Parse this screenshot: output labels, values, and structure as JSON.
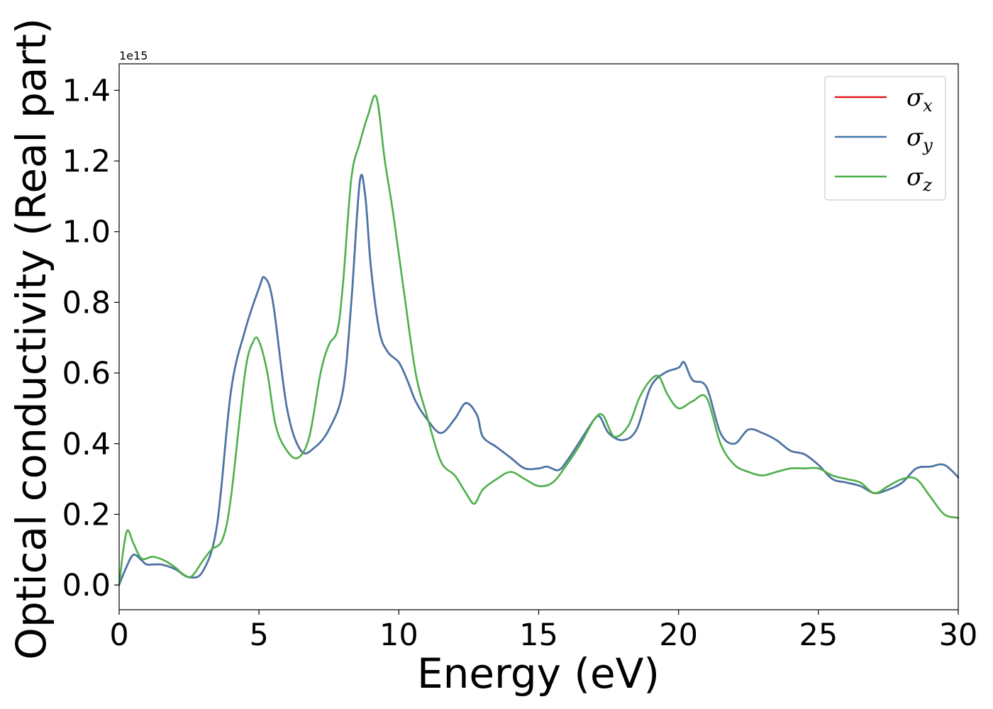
{
  "chart_data": {
    "type": "line",
    "xlabel": "Energy (eV)",
    "ylabel": "Optical conductivity (Real part)",
    "y_offset_label": "1e15",
    "xlim": [
      0,
      30
    ],
    "ylim": [
      -0.07,
      1.475
    ],
    "x_ticks": [
      0,
      5,
      10,
      15,
      20,
      25,
      30
    ],
    "x_tick_labels": [
      "0",
      "5",
      "10",
      "15",
      "20",
      "25",
      "30"
    ],
    "y_ticks": [
      0.0,
      0.2,
      0.4,
      0.6,
      0.8,
      1.0,
      1.2,
      1.4
    ],
    "y_tick_labels": [
      "0.0",
      "0.2",
      "0.4",
      "0.6",
      "0.8",
      "1.0",
      "1.2",
      "1.4"
    ],
    "grid": false,
    "legend_position": "top-right",
    "series": [
      {
        "name": "σ",
        "subscript": "x",
        "color": "#e41a1c",
        "x": [
          0,
          0.2,
          0.5,
          0.8,
          1.0,
          1.5,
          2.0,
          2.5,
          3.0,
          3.5,
          4.0,
          4.5,
          5.0,
          5.2,
          5.5,
          6.0,
          6.5,
          7.0,
          7.5,
          8.0,
          8.3,
          8.6,
          8.8,
          9.0,
          9.3,
          9.6,
          10.0,
          10.3,
          10.6,
          11.0,
          11.5,
          12.0,
          12.4,
          12.8,
          13.0,
          13.5,
          14.0,
          14.5,
          15.0,
          15.3,
          15.7,
          16.0,
          16.5,
          17.0,
          17.2,
          17.5,
          18.0,
          18.5,
          19.0,
          19.5,
          20.0,
          20.2,
          20.5,
          21.0,
          21.5,
          22.0,
          22.5,
          23.0,
          23.5,
          24.0,
          24.5,
          25.0,
          25.5,
          26.0,
          26.5,
          27.0,
          27.5,
          28.0,
          28.5,
          29.0,
          29.5,
          30.0
        ],
        "values": [
          0.0,
          0.04,
          0.085,
          0.07,
          0.058,
          0.058,
          0.045,
          0.022,
          0.04,
          0.17,
          0.55,
          0.72,
          0.84,
          0.87,
          0.8,
          0.5,
          0.38,
          0.39,
          0.44,
          0.55,
          0.8,
          1.14,
          1.1,
          0.9,
          0.72,
          0.66,
          0.63,
          0.58,
          0.52,
          0.47,
          0.43,
          0.47,
          0.515,
          0.48,
          0.42,
          0.39,
          0.36,
          0.33,
          0.33,
          0.335,
          0.325,
          0.35,
          0.41,
          0.47,
          0.475,
          0.43,
          0.41,
          0.44,
          0.56,
          0.6,
          0.615,
          0.63,
          0.58,
          0.56,
          0.43,
          0.4,
          0.44,
          0.43,
          0.41,
          0.38,
          0.37,
          0.34,
          0.3,
          0.29,
          0.28,
          0.26,
          0.27,
          0.29,
          0.33,
          0.335,
          0.34,
          0.305
        ]
      },
      {
        "name": "σ",
        "subscript": "y",
        "color": "#4477aa",
        "x": [
          0,
          0.2,
          0.5,
          0.8,
          1.0,
          1.5,
          2.0,
          2.5,
          3.0,
          3.5,
          4.0,
          4.5,
          5.0,
          5.2,
          5.5,
          6.0,
          6.5,
          7.0,
          7.5,
          8.0,
          8.3,
          8.6,
          8.8,
          9.0,
          9.3,
          9.6,
          10.0,
          10.3,
          10.6,
          11.0,
          11.5,
          12.0,
          12.4,
          12.8,
          13.0,
          13.5,
          14.0,
          14.5,
          15.0,
          15.3,
          15.7,
          16.0,
          16.5,
          17.0,
          17.2,
          17.5,
          18.0,
          18.5,
          19.0,
          19.5,
          20.0,
          20.2,
          20.5,
          21.0,
          21.5,
          22.0,
          22.5,
          23.0,
          23.5,
          24.0,
          24.5,
          25.0,
          25.5,
          26.0,
          26.5,
          27.0,
          27.5,
          28.0,
          28.5,
          29.0,
          29.5,
          30.0
        ],
        "values": [
          0.0,
          0.04,
          0.085,
          0.07,
          0.058,
          0.058,
          0.045,
          0.022,
          0.04,
          0.17,
          0.55,
          0.72,
          0.84,
          0.87,
          0.8,
          0.5,
          0.38,
          0.39,
          0.44,
          0.55,
          0.8,
          1.14,
          1.1,
          0.9,
          0.72,
          0.66,
          0.63,
          0.58,
          0.52,
          0.47,
          0.43,
          0.47,
          0.515,
          0.48,
          0.42,
          0.39,
          0.36,
          0.33,
          0.33,
          0.335,
          0.325,
          0.35,
          0.41,
          0.47,
          0.475,
          0.43,
          0.41,
          0.44,
          0.56,
          0.6,
          0.615,
          0.63,
          0.58,
          0.56,
          0.43,
          0.4,
          0.44,
          0.43,
          0.41,
          0.38,
          0.37,
          0.34,
          0.3,
          0.29,
          0.28,
          0.26,
          0.27,
          0.29,
          0.33,
          0.335,
          0.34,
          0.305
        ]
      },
      {
        "name": "σ",
        "subscript": "z",
        "color": "#4daf4a",
        "x": [
          0,
          0.15,
          0.3,
          0.5,
          0.8,
          1.2,
          1.6,
          2.0,
          2.3,
          2.6,
          3.0,
          3.3,
          3.7,
          4.0,
          4.5,
          4.8,
          5.0,
          5.3,
          5.6,
          6.0,
          6.4,
          6.8,
          7.2,
          7.5,
          7.8,
          8.0,
          8.3,
          8.6,
          8.9,
          9.2,
          9.5,
          9.8,
          10.2,
          10.6,
          11.0,
          11.5,
          12.0,
          12.4,
          12.7,
          13.0,
          13.5,
          14.0,
          14.5,
          15.0,
          15.5,
          16.0,
          16.5,
          17.0,
          17.3,
          17.7,
          18.2,
          18.6,
          19.0,
          19.3,
          19.6,
          20.0,
          20.5,
          21.0,
          21.5,
          22.0,
          22.5,
          23.0,
          23.5,
          24.0,
          24.5,
          25.0,
          25.5,
          26.0,
          26.5,
          27.0,
          27.5,
          28.0,
          28.5,
          29.0,
          29.5,
          30.0
        ],
        "values": [
          0.0,
          0.1,
          0.155,
          0.12,
          0.075,
          0.08,
          0.07,
          0.05,
          0.03,
          0.025,
          0.07,
          0.1,
          0.13,
          0.25,
          0.6,
          0.69,
          0.69,
          0.6,
          0.45,
          0.38,
          0.36,
          0.42,
          0.6,
          0.68,
          0.72,
          0.85,
          1.15,
          1.25,
          1.33,
          1.38,
          1.2,
          1.05,
          0.82,
          0.6,
          0.48,
          0.35,
          0.31,
          0.26,
          0.23,
          0.27,
          0.3,
          0.32,
          0.3,
          0.28,
          0.29,
          0.34,
          0.4,
          0.47,
          0.48,
          0.42,
          0.45,
          0.53,
          0.58,
          0.59,
          0.54,
          0.5,
          0.52,
          0.53,
          0.4,
          0.34,
          0.32,
          0.31,
          0.32,
          0.33,
          0.33,
          0.33,
          0.31,
          0.3,
          0.29,
          0.26,
          0.28,
          0.3,
          0.3,
          0.25,
          0.2,
          0.19
        ]
      }
    ]
  }
}
